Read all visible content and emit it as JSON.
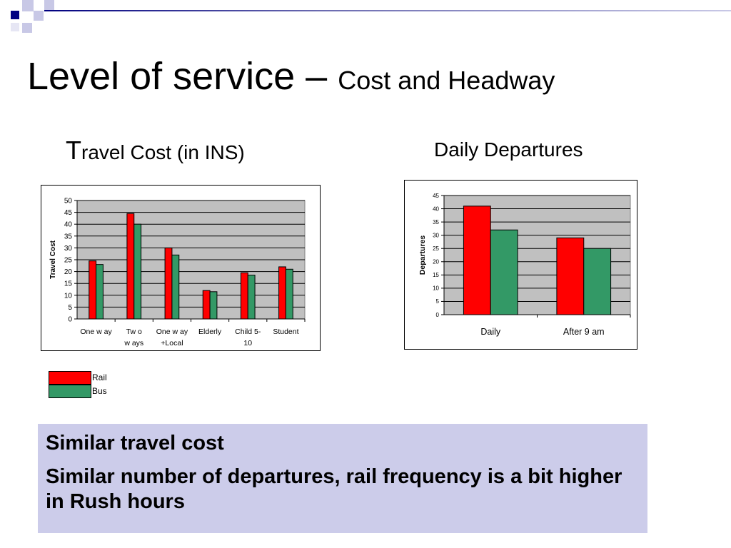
{
  "slide": {
    "title_main": "Level of service – ",
    "title_sub": "Cost and Headway",
    "left_heading_initial": "T",
    "left_heading_rest": "ravel Cost (in INS)",
    "right_heading": "Daily Departures",
    "notes": [
      "Similar travel cost",
      "Similar number of departures, rail frequency is a bit higher in Rush hours"
    ]
  },
  "colors": {
    "rail": "#ff0000",
    "bus": "#339966",
    "plot_bg": "#c0c0c0",
    "note_bg": "#ccccea",
    "accent_navy": "#000080",
    "accent_light": "#c8c8e6"
  },
  "legend": [
    {
      "name": "Rail",
      "color": "#ff0000"
    },
    {
      "name": "Bus",
      "color": "#339966"
    }
  ],
  "chart_data": [
    {
      "type": "bar",
      "title": "Travel Cost (in INS)",
      "ylabel": "Travel Cost",
      "xlabel": "",
      "ylim": [
        0,
        50
      ],
      "yticks": [
        0,
        5,
        10,
        15,
        20,
        25,
        30,
        35,
        40,
        45,
        50
      ],
      "grid": true,
      "categories": [
        [
          "One w ay"
        ],
        [
          "Tw o",
          "w ays"
        ],
        [
          "One w ay",
          "+Local"
        ],
        [
          "Elderly"
        ],
        [
          "Child 5-",
          "10"
        ],
        [
          "Student"
        ]
      ],
      "series": [
        {
          "name": "Rail",
          "values": [
            24.5,
            44.5,
            30,
            12,
            19.5,
            22
          ]
        },
        {
          "name": "Bus",
          "values": [
            23,
            40,
            27,
            11.5,
            18.5,
            21
          ]
        }
      ]
    },
    {
      "type": "bar",
      "title": "Daily Departures",
      "ylabel": "Departures",
      "xlabel": "",
      "ylim": [
        0,
        45
      ],
      "yticks": [
        0,
        5,
        10,
        15,
        20,
        25,
        30,
        35,
        40,
        45
      ],
      "grid": true,
      "categories": [
        [
          "Daily"
        ],
        [
          "After 9 am"
        ]
      ],
      "series": [
        {
          "name": "Rail",
          "values": [
            41,
            29
          ]
        },
        {
          "name": "Bus",
          "values": [
            32,
            25
          ]
        }
      ]
    }
  ]
}
